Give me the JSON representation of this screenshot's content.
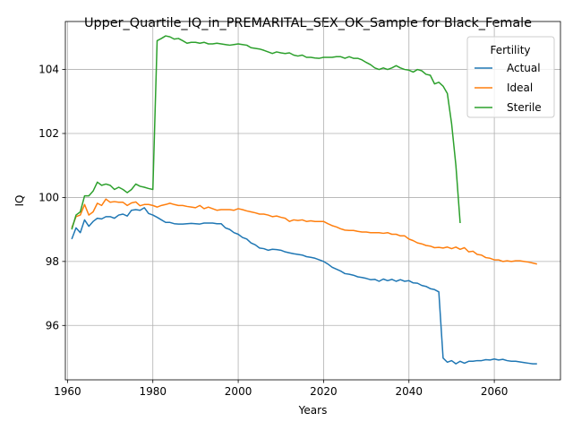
{
  "chart_data": {
    "type": "line",
    "title": "Upper_Quartile_IQ_in_PREMARITAL_SEX_OK_Sample for Black_Female",
    "xlabel": "Years",
    "ylabel": "IQ",
    "xlim": [
      1959.5,
      2075.5
    ],
    "ylim": [
      94.3,
      105.5
    ],
    "xticks": [
      1960,
      1980,
      2000,
      2020,
      2040,
      2060
    ],
    "yticks": [
      96,
      98,
      100,
      102,
      104
    ],
    "grid": true,
    "legend": {
      "title": "Fertility",
      "placement": "upper right"
    },
    "series": [
      {
        "name": "Actual",
        "color": "#1f77b4",
        "x": [
          1961,
          1962,
          1963,
          1964,
          1965,
          1966,
          1967,
          1968,
          1969,
          1970,
          1971,
          1972,
          1973,
          1974,
          1975,
          1976,
          1977,
          1978,
          1979,
          1980,
          1981,
          1982,
          1983,
          1984,
          1985,
          1986,
          1987,
          1988,
          1989,
          1990,
          1991,
          1992,
          1993,
          1994,
          1995,
          1996,
          1997,
          1998,
          1999,
          2000,
          2001,
          2002,
          2003,
          2004,
          2005,
          2006,
          2007,
          2008,
          2009,
          2010,
          2011,
          2012,
          2013,
          2014,
          2015,
          2016,
          2017,
          2018,
          2019,
          2020,
          2021,
          2022,
          2023,
          2024,
          2025,
          2026,
          2027,
          2028,
          2029,
          2030,
          2031,
          2032,
          2033,
          2034,
          2035,
          2036,
          2037,
          2038,
          2039,
          2040,
          2041,
          2042,
          2043,
          2044,
          2045,
          2046,
          2047,
          2048,
          2049,
          2050,
          2051,
          2052,
          2053,
          2054,
          2055,
          2056,
          2057,
          2058,
          2059,
          2060,
          2061,
          2062,
          2063,
          2064,
          2065,
          2066,
          2067,
          2068,
          2069,
          2070
        ],
        "values": [
          98.7,
          99.05,
          98.9,
          99.3,
          99.1,
          99.25,
          99.35,
          99.33,
          99.4,
          99.4,
          99.35,
          99.45,
          99.48,
          99.42,
          99.6,
          99.62,
          99.6,
          99.68,
          99.5,
          99.45,
          99.38,
          99.3,
          99.22,
          99.22,
          99.18,
          99.17,
          99.17,
          99.18,
          99.19,
          99.18,
          99.17,
          99.2,
          99.2,
          99.2,
          99.18,
          99.18,
          99.05,
          99.0,
          98.9,
          98.85,
          98.75,
          98.7,
          98.58,
          98.52,
          98.42,
          98.4,
          98.35,
          98.38,
          98.37,
          98.35,
          98.3,
          98.27,
          98.24,
          98.22,
          98.2,
          98.15,
          98.13,
          98.1,
          98.05,
          98.0,
          97.92,
          97.82,
          97.76,
          97.7,
          97.62,
          97.6,
          97.57,
          97.52,
          97.5,
          97.47,
          97.43,
          97.44,
          97.38,
          97.45,
          97.4,
          97.44,
          97.38,
          97.43,
          97.38,
          97.4,
          97.33,
          97.32,
          97.25,
          97.22,
          97.15,
          97.12,
          97.05,
          94.98,
          94.85,
          94.9,
          94.8,
          94.88,
          94.82,
          94.88,
          94.88,
          94.9,
          94.9,
          94.93,
          94.92,
          94.95,
          94.92,
          94.94,
          94.9,
          94.88,
          94.88,
          94.86,
          94.84,
          94.82,
          94.8,
          94.8
        ]
      },
      {
        "name": "Ideal",
        "color": "#ff7f0e",
        "x": [
          1961,
          1962,
          1963,
          1964,
          1965,
          1966,
          1967,
          1968,
          1969,
          1970,
          1971,
          1972,
          1973,
          1974,
          1975,
          1976,
          1977,
          1978,
          1979,
          1980,
          1981,
          1982,
          1983,
          1984,
          1985,
          1986,
          1987,
          1988,
          1989,
          1990,
          1991,
          1992,
          1993,
          1994,
          1995,
          1996,
          1997,
          1998,
          1999,
          2000,
          2001,
          2002,
          2003,
          2004,
          2005,
          2006,
          2007,
          2008,
          2009,
          2010,
          2011,
          2012,
          2013,
          2014,
          2015,
          2016,
          2017,
          2018,
          2019,
          2020,
          2021,
          2022,
          2023,
          2024,
          2025,
          2026,
          2027,
          2028,
          2029,
          2030,
          2031,
          2032,
          2033,
          2034,
          2035,
          2036,
          2037,
          2038,
          2039,
          2040,
          2041,
          2042,
          2043,
          2044,
          2045,
          2046,
          2047,
          2048,
          2049,
          2050,
          2051,
          2052,
          2053,
          2054,
          2055,
          2056,
          2057,
          2058,
          2059,
          2060,
          2061,
          2062,
          2063,
          2064,
          2065,
          2066,
          2067,
          2068,
          2069,
          2070
        ],
        "values": [
          99.05,
          99.4,
          99.45,
          99.78,
          99.45,
          99.55,
          99.82,
          99.75,
          99.95,
          99.85,
          99.87,
          99.85,
          99.85,
          99.75,
          99.83,
          99.86,
          99.74,
          99.78,
          99.78,
          99.75,
          99.7,
          99.75,
          99.78,
          99.82,
          99.78,
          99.75,
          99.75,
          99.72,
          99.7,
          99.68,
          99.75,
          99.65,
          99.7,
          99.65,
          99.6,
          99.62,
          99.62,
          99.62,
          99.6,
          99.65,
          99.62,
          99.58,
          99.55,
          99.52,
          99.48,
          99.48,
          99.45,
          99.4,
          99.42,
          99.38,
          99.35,
          99.25,
          99.3,
          99.28,
          99.3,
          99.25,
          99.27,
          99.25,
          99.25,
          99.25,
          99.18,
          99.12,
          99.08,
          99.02,
          98.98,
          98.97,
          98.97,
          98.94,
          98.92,
          98.92,
          98.9,
          98.9,
          98.9,
          98.88,
          98.9,
          98.85,
          98.85,
          98.8,
          98.8,
          98.7,
          98.65,
          98.58,
          98.55,
          98.5,
          98.48,
          98.43,
          98.44,
          98.42,
          98.45,
          98.4,
          98.45,
          98.38,
          98.43,
          98.3,
          98.32,
          98.22,
          98.2,
          98.12,
          98.1,
          98.05,
          98.05,
          98.0,
          98.02,
          98.0,
          98.02,
          98.02,
          98.0,
          97.98,
          97.95,
          97.92
        ]
      },
      {
        "name": "Sterile",
        "color": "#2ca02c",
        "x": [
          1961,
          1962,
          1963,
          1964,
          1965,
          1966,
          1967,
          1968,
          1969,
          1970,
          1971,
          1972,
          1973,
          1974,
          1975,
          1976,
          1977,
          1978,
          1979,
          1980,
          1981,
          1982,
          1983,
          1984,
          1985,
          1986,
          1987,
          1988,
          1989,
          1990,
          1991,
          1992,
          1993,
          1994,
          1995,
          1996,
          1997,
          1998,
          1999,
          2000,
          2001,
          2002,
          2003,
          2004,
          2005,
          2006,
          2007,
          2008,
          2009,
          2010,
          2011,
          2012,
          2013,
          2014,
          2015,
          2016,
          2017,
          2018,
          2019,
          2020,
          2021,
          2022,
          2023,
          2024,
          2025,
          2026,
          2027,
          2028,
          2029,
          2030,
          2031,
          2032,
          2033,
          2034,
          2035,
          2036,
          2037,
          2038,
          2039,
          2040,
          2041,
          2042,
          2043,
          2044,
          2045,
          2046,
          2047,
          2048,
          2049,
          2050,
          2051,
          2052
        ],
        "values": [
          99.0,
          99.45,
          99.55,
          100.05,
          100.05,
          100.2,
          100.48,
          100.38,
          100.42,
          100.38,
          100.25,
          100.32,
          100.25,
          100.15,
          100.25,
          100.42,
          100.35,
          100.32,
          100.28,
          100.25,
          104.9,
          104.97,
          105.05,
          105.02,
          104.95,
          104.97,
          104.9,
          104.82,
          104.85,
          104.85,
          104.82,
          104.85,
          104.8,
          104.8,
          104.82,
          104.8,
          104.78,
          104.76,
          104.78,
          104.8,
          104.78,
          104.76,
          104.68,
          104.66,
          104.64,
          104.6,
          104.55,
          104.5,
          104.55,
          104.52,
          104.5,
          104.52,
          104.45,
          104.42,
          104.45,
          104.38,
          104.38,
          104.36,
          104.35,
          104.38,
          104.38,
          104.38,
          104.4,
          104.4,
          104.35,
          104.4,
          104.35,
          104.35,
          104.3,
          104.22,
          104.15,
          104.05,
          104.0,
          104.05,
          104.0,
          104.05,
          104.12,
          104.05,
          104.0,
          103.98,
          103.92,
          104.0,
          103.96,
          103.85,
          103.82,
          103.55,
          103.6,
          103.48,
          103.25,
          102.3,
          101.0,
          99.2
        ]
      }
    ]
  }
}
